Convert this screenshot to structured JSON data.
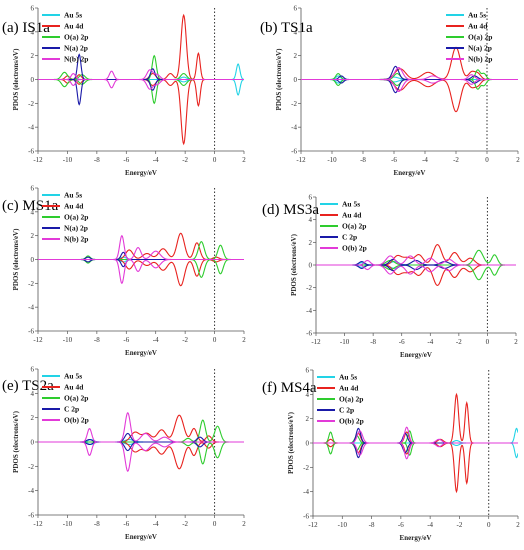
{
  "colors": {
    "Au 5s": "#22d3e6",
    "Au 4d": "#e8231f",
    "O(a) 2p": "#2ecc2e",
    "N(a) 2p": "#1a1aa8",
    "N(b) 2p": "#e23ad8",
    "C 2p": "#1a1aa8",
    "O(b) 2p": "#e23ad8"
  },
  "chart_data": [
    {
      "id": "IS1a",
      "label": "(a) IS1a",
      "type": "line",
      "xlabel": "Energy/eV",
      "ylabel": "PDOS (electrons/eV)",
      "xlim": [
        -12,
        2
      ],
      "ylim": [
        -6,
        6
      ],
      "xticks": [
        -12,
        -10,
        -8,
        -6,
        -4,
        -2,
        0,
        2
      ],
      "xticklabels": [
        "-12",
        "-10",
        "-8",
        "-6",
        "-4",
        "-2",
        "0",
        "2"
      ],
      "yticks": [
        -6,
        -4,
        -2,
        0,
        2,
        4,
        6
      ],
      "fermi_level": 0,
      "legend_position": "top-left",
      "mirrored_spin": true,
      "series": [
        {
          "name": "Au 5s",
          "peaks": [
            [
              1.6,
              1.3,
              0.12
            ],
            [
              -2.1,
              0.2,
              0.2
            ]
          ]
        },
        {
          "name": "Au 4d",
          "peaks": [
            [
              -2.1,
              5.4,
              0.18
            ],
            [
              -1.1,
              2.2,
              0.12
            ],
            [
              -3.0,
              0.5,
              0.2
            ],
            [
              -4.2,
              0.5,
              0.2
            ],
            [
              -9.2,
              0.4,
              0.15
            ],
            [
              -10.0,
              0.3,
              0.15
            ]
          ]
        },
        {
          "name": "O(a) 2p",
          "peaks": [
            [
              -4.1,
              2.0,
              0.14
            ],
            [
              -2.1,
              0.5,
              0.2
            ],
            [
              -10.2,
              0.6,
              0.2
            ],
            [
              -9.0,
              0.4,
              0.2
            ]
          ]
        },
        {
          "name": "N(a) 2p",
          "peaks": [
            [
              -9.2,
              2.1,
              0.12
            ],
            [
              -4.2,
              0.9,
              0.15
            ]
          ]
        },
        {
          "name": "N(b) 2p",
          "peaks": [
            [
              -7.0,
              0.7,
              0.15
            ],
            [
              -4.4,
              0.8,
              0.2
            ],
            [
              -9.6,
              0.5,
              0.15
            ],
            [
              -3.9,
              0.4,
              0.2
            ]
          ]
        }
      ]
    },
    {
      "id": "TS1a",
      "label": "(b) TS1a",
      "type": "line",
      "xlabel": "Energy/eV",
      "ylabel": "PDOS (electrons/eV)",
      "xlim": [
        -12,
        2
      ],
      "ylim": [
        -6,
        6
      ],
      "xticks": [
        -12,
        -10,
        -8,
        -6,
        -4,
        -2,
        0,
        2
      ],
      "xticklabels": [
        "-12",
        "-10",
        "-8",
        "-6",
        "-4",
        "-2",
        "0",
        "2"
      ],
      "yticks": [
        -6,
        -4,
        -2,
        0,
        2,
        4,
        6
      ],
      "fermi_level": 0,
      "legend_position": "top-right",
      "mirrored_spin": true,
      "series": [
        {
          "name": "Au 5s",
          "peaks": [
            [
              -9.6,
              0.3,
              0.15
            ],
            [
              -6.0,
              0.2,
              0.3
            ]
          ]
        },
        {
          "name": "Au 4d",
          "peaks": [
            [
              -2.0,
              2.7,
              0.28
            ],
            [
              -5.6,
              0.9,
              0.35
            ],
            [
              -3.8,
              0.6,
              0.4
            ],
            [
              -0.6,
              0.5,
              0.2
            ],
            [
              -1.0,
              0.6,
              0.2
            ]
          ]
        },
        {
          "name": "O(a) 2p",
          "peaks": [
            [
              -9.6,
              0.5,
              0.15
            ],
            [
              -5.8,
              0.5,
              0.2
            ],
            [
              -0.6,
              0.8,
              0.15
            ],
            [
              -0.2,
              0.5,
              0.15
            ]
          ]
        },
        {
          "name": "N(a) 2p",
          "peaks": [
            [
              -5.9,
              1.1,
              0.2
            ],
            [
              -9.4,
              0.3,
              0.15
            ],
            [
              -0.8,
              0.3,
              0.2
            ]
          ]
        },
        {
          "name": "N(b) 2p",
          "peaks": [
            [
              -5.7,
              1.0,
              0.25
            ],
            [
              -3.5,
              0.3,
              0.3
            ],
            [
              -1.0,
              0.4,
              0.2
            ]
          ]
        }
      ]
    },
    {
      "id": "MS1a",
      "label": "(c) MS1a",
      "type": "line",
      "xlabel": "Energy/eV",
      "ylabel": "PDOS (electrons/eV)",
      "xlim": [
        -12,
        2
      ],
      "ylim": [
        -6,
        6
      ],
      "xticks": [
        -12,
        -10,
        -8,
        -6,
        -4,
        -2,
        0,
        2
      ],
      "xticklabels": [
        "-12",
        "-10",
        "-8",
        "-6",
        "-4",
        "-2",
        "0",
        "2"
      ],
      "yticks": [
        -6,
        -4,
        -2,
        0,
        2,
        4,
        6
      ],
      "fermi_level": 0,
      "legend_position": "top-left",
      "mirrored_spin": true,
      "series": [
        {
          "name": "Au 5s",
          "peaks": [
            [
              -6.2,
              0.2,
              0.2
            ]
          ]
        },
        {
          "name": "Au 4d",
          "peaks": [
            [
              -2.3,
              2.2,
              0.25
            ],
            [
              -1.2,
              1.4,
              0.2
            ],
            [
              -3.5,
              0.9,
              0.3
            ],
            [
              -5.8,
              0.8,
              0.25
            ],
            [
              -4.6,
              0.5,
              0.3
            ],
            [
              0.1,
              0.2,
              0.2
            ]
          ]
        },
        {
          "name": "O(a) 2p",
          "peaks": [
            [
              -0.9,
              1.5,
              0.2
            ],
            [
              0.4,
              1.2,
              0.18
            ],
            [
              -8.6,
              0.3,
              0.15
            ]
          ]
        },
        {
          "name": "N(a) 2p",
          "peaks": [
            [
              -6.2,
              0.6,
              0.15
            ],
            [
              -8.6,
              0.2,
              0.15
            ]
          ]
        },
        {
          "name": "N(b) 2p",
          "peaks": [
            [
              -6.3,
              2.0,
              0.15
            ],
            [
              -5.2,
              1.0,
              0.2
            ],
            [
              -4.0,
              0.7,
              0.3
            ]
          ]
        }
      ]
    },
    {
      "id": "MS3a",
      "label": "(d) MS3a",
      "type": "line",
      "xlabel": "Energy/eV",
      "ylabel": "PDOS (electrons/eV)",
      "xlim": [
        -12,
        2
      ],
      "ylim": [
        -6,
        6
      ],
      "xticks": [
        -12,
        -10,
        -8,
        -6,
        -4,
        -2,
        0,
        2
      ],
      "xticklabels": [
        "-12",
        "-10",
        "-8",
        "-6",
        "-4",
        "-2",
        "0",
        "2"
      ],
      "yticks": [
        -6,
        -4,
        -2,
        0,
        2,
        4,
        6
      ],
      "fermi_level": 0,
      "legend_position": "top-left",
      "mirrored_spin": true,
      "series": [
        {
          "name": "Au 5s",
          "peaks": [
            [
              -6.5,
              0.3,
              0.3
            ],
            [
              -8.8,
              0.2,
              0.2
            ]
          ]
        },
        {
          "name": "Au 4d",
          "peaks": [
            [
              -3.5,
              1.8,
              0.3
            ],
            [
              -2.3,
              1.1,
              0.3
            ],
            [
              -4.8,
              0.9,
              0.3
            ],
            [
              -6.3,
              0.8,
              0.3
            ],
            [
              -5.6,
              0.6,
              0.3
            ],
            [
              -1.2,
              0.6,
              0.3
            ]
          ]
        },
        {
          "name": "O(a) 2p",
          "peaks": [
            [
              -0.6,
              1.3,
              0.3
            ],
            [
              0.5,
              0.9,
              0.2
            ],
            [
              -6.8,
              0.4,
              0.3
            ]
          ]
        },
        {
          "name": "C 2p",
          "peaks": [
            [
              -8.8,
              0.3,
              0.2
            ],
            [
              -6.6,
              0.5,
              0.25
            ],
            [
              -5.0,
              0.4,
              0.3
            ],
            [
              -3.0,
              0.3,
              0.3
            ]
          ]
        },
        {
          "name": "O(b) 2p",
          "peaks": [
            [
              -6.8,
              0.8,
              0.3
            ],
            [
              -5.4,
              0.8,
              0.3
            ],
            [
              -4.0,
              0.6,
              0.3
            ],
            [
              -8.4,
              0.4,
              0.2
            ],
            [
              -2.7,
              0.5,
              0.3
            ]
          ]
        }
      ]
    },
    {
      "id": "TS2a",
      "label": "(e) TS2a",
      "type": "line",
      "xlabel": "Energy/eV",
      "ylabel": "PDOS (electrons/eV)",
      "xlim": [
        -12,
        2
      ],
      "ylim": [
        -6,
        6
      ],
      "xticks": [
        -12,
        -10,
        -8,
        -6,
        -4,
        -2,
        0,
        2
      ],
      "xticklabels": [
        "-12",
        "-10",
        "-8",
        "-6",
        "-4",
        "-2",
        "0",
        "2"
      ],
      "yticks": [
        -6,
        -4,
        -2,
        0,
        2,
        4,
        6
      ],
      "fermi_level": 0,
      "legend_position": "top-left",
      "mirrored_spin": true,
      "series": [
        {
          "name": "Au 5s",
          "peaks": [
            [
              -8.4,
              0.2,
              0.2
            ],
            [
              -5.8,
              0.2,
              0.3
            ]
          ]
        },
        {
          "name": "Au 4d",
          "peaks": [
            [
              -2.4,
              2.2,
              0.3
            ],
            [
              -1.4,
              1.1,
              0.2
            ],
            [
              -3.6,
              1.0,
              0.3
            ],
            [
              -5.4,
              0.8,
              0.3
            ],
            [
              -4.6,
              0.7,
              0.3
            ],
            [
              -0.4,
              0.5,
              0.2
            ]
          ]
        },
        {
          "name": "O(a) 2p",
          "peaks": [
            [
              -0.8,
              1.8,
              0.18
            ],
            [
              0.2,
              1.3,
              0.2
            ],
            [
              -1.8,
              0.3,
              0.2
            ]
          ]
        },
        {
          "name": "C 2p",
          "peaks": [
            [
              -5.9,
              0.7,
              0.2
            ],
            [
              -8.5,
              0.2,
              0.2
            ],
            [
              -1.0,
              0.4,
              0.2
            ]
          ]
        },
        {
          "name": "O(b) 2p",
          "peaks": [
            [
              -5.9,
              2.4,
              0.18
            ],
            [
              -8.5,
              1.1,
              0.15
            ],
            [
              -4.7,
              0.7,
              0.3
            ],
            [
              -3.4,
              0.4,
              0.3
            ]
          ]
        }
      ]
    },
    {
      "id": "MS4a",
      "label": "(f) MS4a",
      "type": "line",
      "xlabel": "Energy/eV",
      "ylabel": "PDOS (electrons/eV)",
      "xlim": [
        -12,
        2
      ],
      "ylim": [
        -6,
        6
      ],
      "xticks": [
        -12,
        -10,
        -8,
        -6,
        -4,
        -2,
        0,
        2
      ],
      "xticklabels": [
        "-12",
        "-10",
        "-8",
        "-6",
        "-4",
        "-2",
        "0",
        "2"
      ],
      "yticks": [
        -6,
        -4,
        -2,
        0,
        2,
        4,
        6
      ],
      "fermi_level": 0,
      "legend_position": "top-left",
      "mirrored_spin": true,
      "series": [
        {
          "name": "Au 5s",
          "peaks": [
            [
              1.9,
              1.2,
              0.12
            ],
            [
              -2.2,
              0.2,
              0.2
            ]
          ]
        },
        {
          "name": "Au 4d",
          "peaks": [
            [
              -2.2,
              4.0,
              0.14
            ],
            [
              -1.5,
              3.3,
              0.12
            ],
            [
              -3.3,
              0.3,
              0.2
            ],
            [
              -5.6,
              0.9,
              0.15
            ],
            [
              -8.9,
              0.8,
              0.15
            ],
            [
              -10.8,
              0.3,
              0.15
            ]
          ]
        },
        {
          "name": "O(a) 2p",
          "peaks": [
            [
              -10.8,
              0.9,
              0.12
            ],
            [
              -5.4,
              1.0,
              0.12
            ],
            [
              -9.0,
              0.6,
              0.15
            ]
          ]
        },
        {
          "name": "C 2p",
          "peaks": [
            [
              -8.9,
              1.2,
              0.15
            ],
            [
              -5.7,
              0.8,
              0.15
            ]
          ]
        },
        {
          "name": "O(b) 2p",
          "peaks": [
            [
              -8.8,
              1.0,
              0.18
            ],
            [
              -5.6,
              1.3,
              0.15
            ],
            [
              -3.4,
              0.3,
              0.2
            ]
          ]
        }
      ]
    }
  ]
}
